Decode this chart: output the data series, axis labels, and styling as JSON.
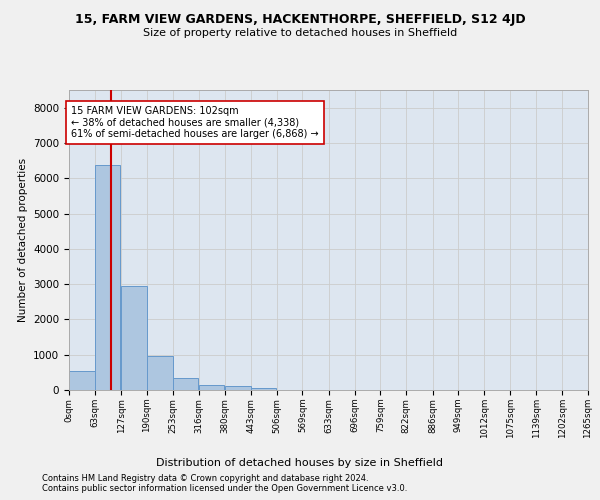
{
  "title_line1": "15, FARM VIEW GARDENS, HACKENTHORPE, SHEFFIELD, S12 4JD",
  "title_line2": "Size of property relative to detached houses in Sheffield",
  "xlabel": "Distribution of detached houses by size in Sheffield",
  "ylabel": "Number of detached properties",
  "bar_values": [
    550,
    6380,
    2950,
    960,
    340,
    155,
    105,
    70,
    0,
    0,
    0,
    0,
    0,
    0,
    0,
    0,
    0,
    0,
    0,
    0
  ],
  "bin_edges": [
    0,
    63,
    127,
    190,
    253,
    316,
    380,
    443,
    506,
    569,
    633,
    696,
    759,
    822,
    886,
    949,
    1012,
    1075,
    1139,
    1202,
    1265
  ],
  "tick_labels": [
    "0sqm",
    "63sqm",
    "127sqm",
    "190sqm",
    "253sqm",
    "316sqm",
    "380sqm",
    "443sqm",
    "506sqm",
    "569sqm",
    "633sqm",
    "696sqm",
    "759sqm",
    "822sqm",
    "886sqm",
    "949sqm",
    "1012sqm",
    "1075sqm",
    "1139sqm",
    "1202sqm",
    "1265sqm"
  ],
  "bar_color": "#adc6e0",
  "bar_edge_color": "#6699cc",
  "vline_x": 102,
  "vline_color": "#cc0000",
  "annotation_text": "15 FARM VIEW GARDENS: 102sqm\n← 38% of detached houses are smaller (4,338)\n61% of semi-detached houses are larger (6,868) →",
  "annotation_box_color": "#ffffff",
  "annotation_box_edge": "#cc0000",
  "ylim": [
    0,
    8500
  ],
  "yticks": [
    0,
    1000,
    2000,
    3000,
    4000,
    5000,
    6000,
    7000,
    8000
  ],
  "grid_color": "#cccccc",
  "background_color": "#dde6f0",
  "fig_background": "#f0f0f0",
  "footer_line1": "Contains HM Land Registry data © Crown copyright and database right 2024.",
  "footer_line2": "Contains public sector information licensed under the Open Government Licence v3.0."
}
